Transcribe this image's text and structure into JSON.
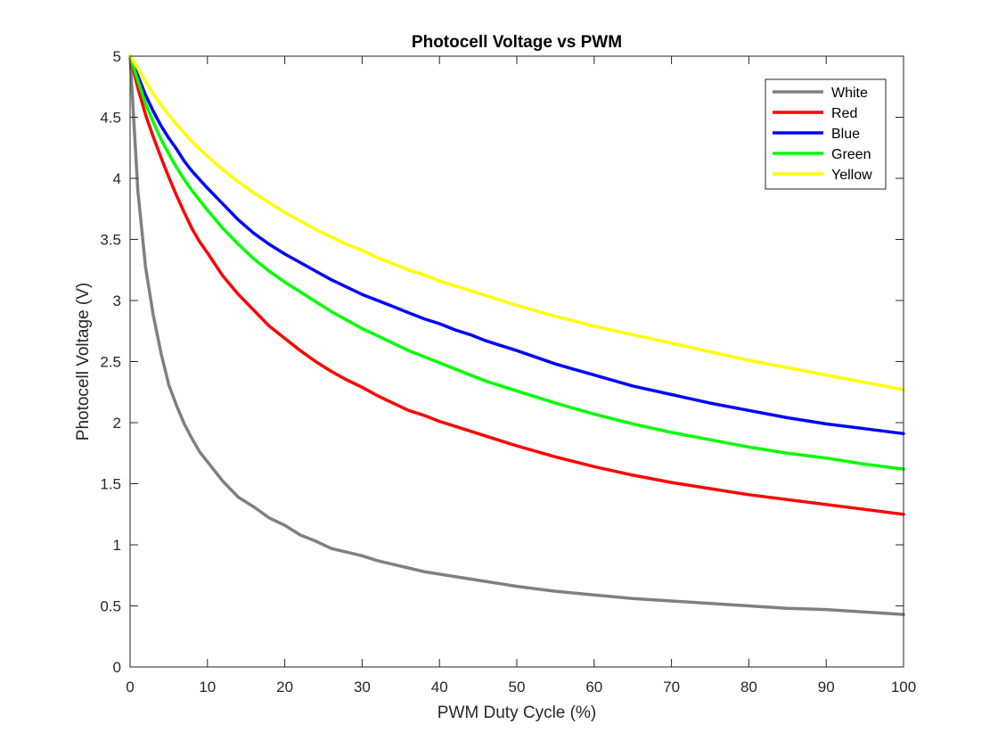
{
  "chart_data": {
    "type": "line",
    "title": "Photocell Voltage vs PWM",
    "xlabel": "PWM Duty Cycle (%)",
    "ylabel": "Photocell Voltage (V)",
    "xlim": [
      0,
      100
    ],
    "ylim": [
      0,
      5
    ],
    "xticks": [
      0,
      10,
      20,
      30,
      40,
      50,
      60,
      70,
      80,
      90,
      100
    ],
    "yticks": [
      0,
      0.5,
      1,
      1.5,
      2,
      2.5,
      3,
      3.5,
      4,
      4.5,
      5
    ],
    "xtick_labels": [
      "0",
      "10",
      "20",
      "30",
      "40",
      "50",
      "60",
      "70",
      "80",
      "90",
      "100"
    ],
    "ytick_labels": [
      "0",
      "0.5",
      "1",
      "1.5",
      "2",
      "2.5",
      "3",
      "3.5",
      "4",
      "4.5",
      "5"
    ],
    "grid": false,
    "legend_position": "top-right",
    "x": [
      0,
      1,
      2,
      3,
      4,
      5,
      6,
      7,
      8,
      9,
      10,
      12,
      14,
      16,
      18,
      20,
      22,
      24,
      26,
      28,
      30,
      32,
      34,
      36,
      38,
      40,
      42,
      44,
      46,
      48,
      50,
      55,
      60,
      65,
      70,
      75,
      80,
      85,
      90,
      95,
      100
    ],
    "series": [
      {
        "name": "White",
        "color": "#808080",
        "values": [
          5.0,
          3.9,
          3.27,
          2.88,
          2.57,
          2.31,
          2.14,
          1.99,
          1.87,
          1.76,
          1.68,
          1.52,
          1.39,
          1.31,
          1.22,
          1.16,
          1.08,
          1.03,
          0.97,
          0.94,
          0.91,
          0.87,
          0.84,
          0.81,
          0.78,
          0.76,
          0.74,
          0.72,
          0.7,
          0.68,
          0.66,
          0.62,
          0.59,
          0.56,
          0.54,
          0.52,
          0.5,
          0.48,
          0.47,
          0.45,
          0.43
        ]
      },
      {
        "name": "Red",
        "color": "#ff0000",
        "values": [
          5.0,
          4.74,
          4.52,
          4.34,
          4.17,
          4.01,
          3.86,
          3.72,
          3.59,
          3.48,
          3.39,
          3.2,
          3.05,
          2.92,
          2.79,
          2.69,
          2.59,
          2.5,
          2.42,
          2.35,
          2.29,
          2.22,
          2.16,
          2.1,
          2.06,
          2.01,
          1.97,
          1.93,
          1.89,
          1.85,
          1.81,
          1.72,
          1.64,
          1.57,
          1.51,
          1.46,
          1.41,
          1.37,
          1.33,
          1.29,
          1.25
        ]
      },
      {
        "name": "Blue",
        "color": "#0000ff",
        "values": [
          5.0,
          4.84,
          4.68,
          4.55,
          4.43,
          4.33,
          4.24,
          4.14,
          4.06,
          3.99,
          3.92,
          3.79,
          3.66,
          3.55,
          3.46,
          3.38,
          3.31,
          3.24,
          3.17,
          3.11,
          3.05,
          3.0,
          2.95,
          2.9,
          2.85,
          2.81,
          2.76,
          2.72,
          2.67,
          2.63,
          2.59,
          2.48,
          2.39,
          2.3,
          2.23,
          2.16,
          2.1,
          2.04,
          1.99,
          1.95,
          1.91
        ]
      },
      {
        "name": "Green",
        "color": "#00ff00",
        "values": [
          5.0,
          4.8,
          4.61,
          4.46,
          4.32,
          4.2,
          4.09,
          3.99,
          3.9,
          3.82,
          3.74,
          3.59,
          3.46,
          3.34,
          3.24,
          3.15,
          3.07,
          2.99,
          2.91,
          2.84,
          2.77,
          2.71,
          2.65,
          2.59,
          2.54,
          2.49,
          2.44,
          2.39,
          2.34,
          2.3,
          2.26,
          2.16,
          2.07,
          1.99,
          1.92,
          1.86,
          1.8,
          1.75,
          1.71,
          1.66,
          1.62
        ]
      },
      {
        "name": "Yellow",
        "color": "#ffff00",
        "values": [
          5.0,
          4.9,
          4.79,
          4.69,
          4.6,
          4.52,
          4.44,
          4.37,
          4.3,
          4.24,
          4.18,
          4.07,
          3.97,
          3.88,
          3.8,
          3.72,
          3.65,
          3.58,
          3.52,
          3.46,
          3.41,
          3.35,
          3.3,
          3.25,
          3.21,
          3.16,
          3.12,
          3.08,
          3.04,
          3.0,
          2.96,
          2.87,
          2.79,
          2.72,
          2.65,
          2.58,
          2.51,
          2.45,
          2.39,
          2.33,
          2.27
        ]
      }
    ]
  }
}
